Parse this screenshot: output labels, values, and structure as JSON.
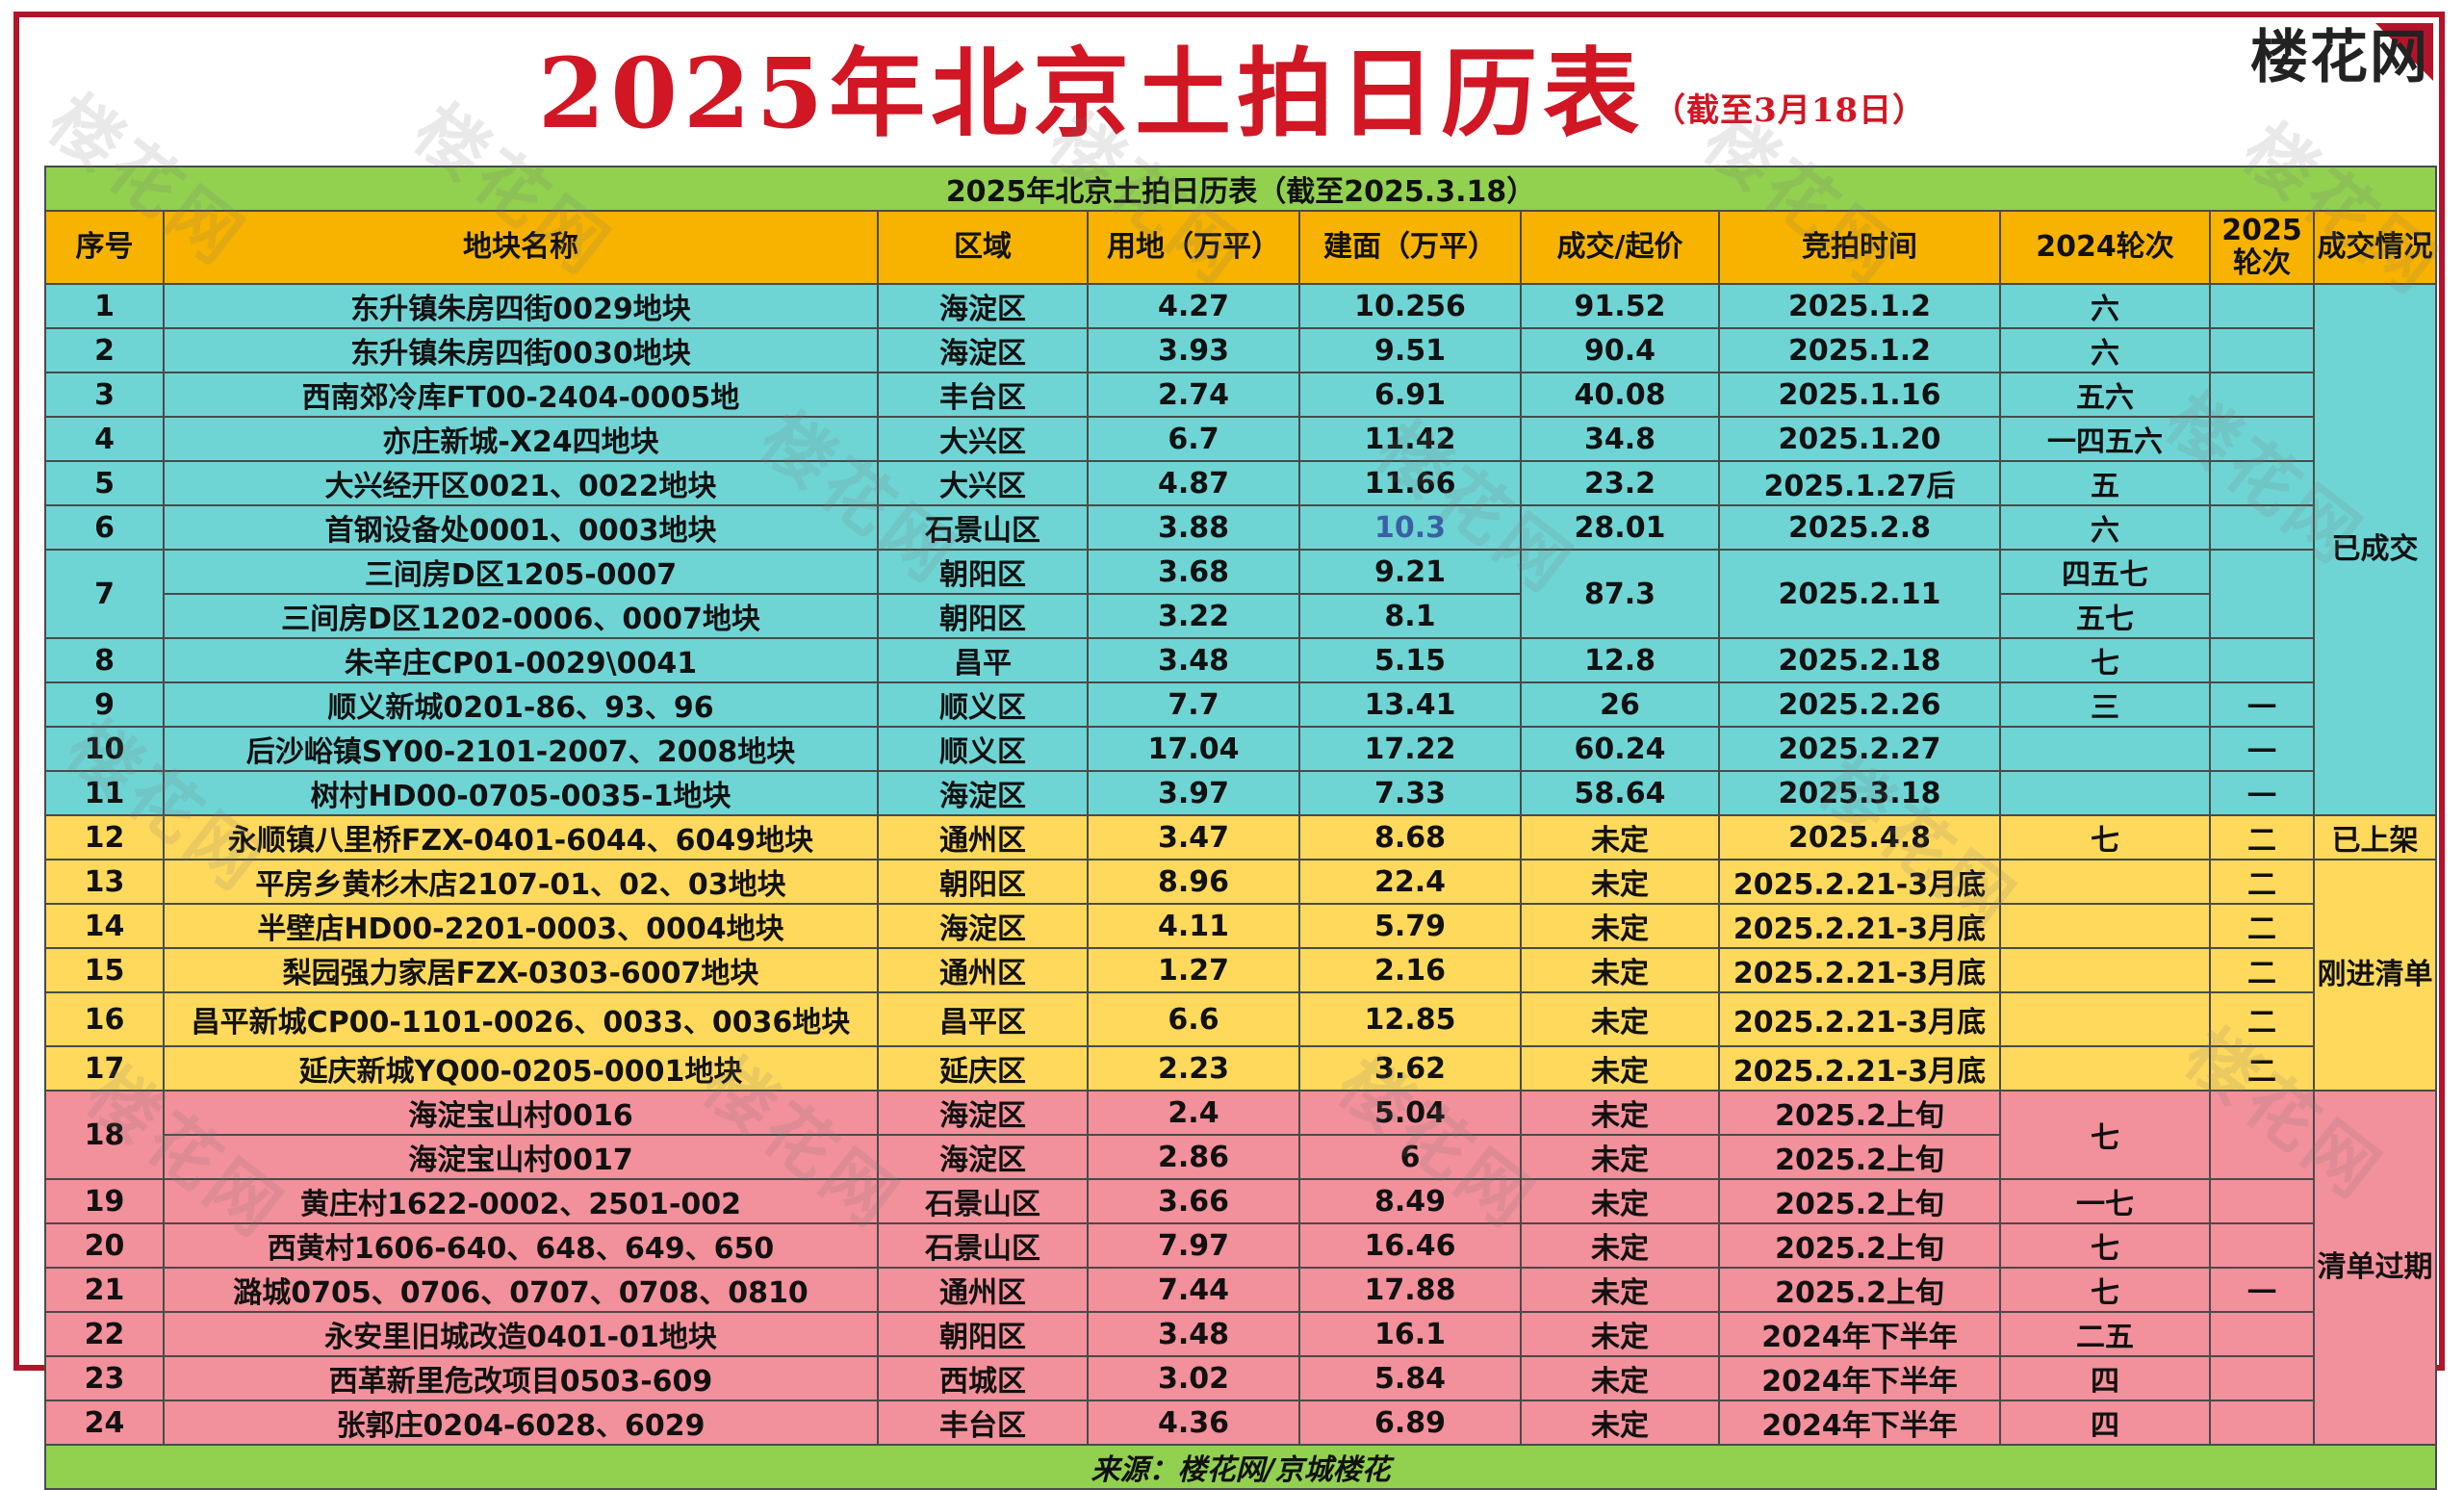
{
  "page": {
    "title": "2025年北京土拍日历表",
    "subtitle": "（截至3月18日）",
    "logo_text": "楼花网",
    "watermark_text": "楼花网",
    "accent_color": "#b3142b"
  },
  "table": {
    "caption": "2025年北京土拍日历表（截至2025.3.18）",
    "headers": {
      "index": "序号",
      "name": "地块名称",
      "district": "区域",
      "land_area": "用地（万平）",
      "floor_area": "建面（万平）",
      "price": "成交/起价",
      "auction_time": "竞拍时间",
      "round_2024": "2024轮次",
      "round_2025": "2025轮次",
      "status": "成交情况"
    },
    "status_groups": {
      "sold": "已成交",
      "listed": "已上架",
      "new": "刚进清单",
      "expired": "清单过期"
    },
    "rows": [
      {
        "index": "1",
        "name": "东升镇朱房四街0029地块",
        "district": "海淀区",
        "land": "4.27",
        "floor": "10.256",
        "price": "91.52",
        "time": "2025.1.2",
        "r2024": "六",
        "r2025": ""
      },
      {
        "index": "2",
        "name": "东升镇朱房四街0030地块",
        "district": "海淀区",
        "land": "3.93",
        "floor": "9.51",
        "price": "90.4",
        "time": "2025.1.2",
        "r2024": "六",
        "r2025": ""
      },
      {
        "index": "3",
        "name": "西南郊冷库FT00-2404-0005地",
        "district": "丰台区",
        "land": "2.74",
        "floor": "6.91",
        "price": "40.08",
        "time": "2025.1.16",
        "r2024": "五六",
        "r2025": ""
      },
      {
        "index": "4",
        "name": "亦庄新城-X24四地块",
        "district": "大兴区",
        "land": "6.7",
        "floor": "11.42",
        "price": "34.8",
        "time": "2025.1.20",
        "r2024": "一四五六",
        "r2025": ""
      },
      {
        "index": "5",
        "name": "大兴经开区0021、0022地块",
        "district": "大兴区",
        "land": "4.87",
        "floor": "11.66",
        "price": "23.2",
        "time": "2025.1.27后",
        "r2024": "五",
        "r2025": ""
      },
      {
        "index": "6",
        "name": "首钢设备处0001、0003地块",
        "district": "石景山区",
        "land": "3.88",
        "floor": "10.3",
        "price": "28.01",
        "time": "2025.2.8",
        "r2024": "六",
        "r2025": ""
      },
      {
        "index": "7",
        "sub": [
          {
            "name": "三间房D区1205-0007",
            "district": "朝阳区",
            "land": "3.68",
            "floor": "9.21",
            "r2024": "四五七"
          },
          {
            "name": "三间房D区1202-0006、0007地块",
            "district": "朝阳区",
            "land": "3.22",
            "floor": "8.1",
            "r2024": "五七"
          }
        ],
        "price": "87.3",
        "time": "2025.2.11",
        "r2025": ""
      },
      {
        "index": "8",
        "name": "朱辛庄CP01-0029\\0041",
        "district": "昌平",
        "land": "3.48",
        "floor": "5.15",
        "price": "12.8",
        "time": "2025.2.18",
        "r2024": "七",
        "r2025": ""
      },
      {
        "index": "9",
        "name": "顺义新城0201-86、93、96",
        "district": "顺义区",
        "land": "7.7",
        "floor": "13.41",
        "price": "26",
        "time": "2025.2.26",
        "r2024": "三",
        "r2025": "一"
      },
      {
        "index": "10",
        "name": "后沙峪镇SY00-2101-2007、2008地块",
        "district": "顺义区",
        "land": "17.04",
        "floor": "17.22",
        "price": "60.24",
        "time": "2025.2.27",
        "r2024": "",
        "r2025": "一"
      },
      {
        "index": "11",
        "name": "树村HD00-0705-0035-1地块",
        "district": "海淀区",
        "land": "3.97",
        "floor": "7.33",
        "price": "58.64",
        "time": "2025.3.18",
        "r2024": "",
        "r2025": "一"
      },
      {
        "index": "12",
        "name": "永顺镇八里桥FZX-0401-6044、6049地块",
        "district": "通州区",
        "land": "3.47",
        "floor": "8.68",
        "price": "未定",
        "time": "2025.4.8",
        "r2024": "七",
        "r2025": "二"
      },
      {
        "index": "13",
        "name": "平房乡黄杉木店2107-01、02、03地块",
        "district": "朝阳区",
        "land": "8.96",
        "floor": "22.4",
        "price": "未定",
        "time": "2025.2.21-3月底",
        "r2024": "",
        "r2025": "二"
      },
      {
        "index": "14",
        "name": "半壁店HD00-2201-0003、0004地块",
        "district": "海淀区",
        "land": "4.11",
        "floor": "5.79",
        "price": "未定",
        "time": "2025.2.21-3月底",
        "r2024": "",
        "r2025": "二"
      },
      {
        "index": "15",
        "name": "梨园强力家居FZX-0303-6007地块",
        "district": "通州区",
        "land": "1.27",
        "floor": "2.16",
        "price": "未定",
        "time": "2025.2.21-3月底",
        "r2024": "",
        "r2025": "二"
      },
      {
        "index": "16",
        "name": "昌平新城CP00-1101-0026、0033、0036地块",
        "district": "昌平区",
        "land": "6.6",
        "floor": "12.85",
        "price": "未定",
        "time": "2025.2.21-3月底",
        "r2024": "",
        "r2025": "二"
      },
      {
        "index": "17",
        "name": "延庆新城YQ00-0205-0001地块",
        "district": "延庆区",
        "land": "2.23",
        "floor": "3.62",
        "price": "未定",
        "time": "2025.2.21-3月底",
        "r2024": "",
        "r2025": "二"
      },
      {
        "index": "18",
        "sub": [
          {
            "name": "海淀宝山村0016",
            "district": "海淀区",
            "land": "2.4",
            "floor": "5.04",
            "price": "未定",
            "time": "2025.2上旬"
          },
          {
            "name": "海淀宝山村0017",
            "district": "海淀区",
            "land": "2.86",
            "floor": "6",
            "price": "未定",
            "time": "2025.2上旬"
          }
        ],
        "r2024": "七",
        "r2025": ""
      },
      {
        "index": "19",
        "name": "黄庄村1622-0002、2501-002",
        "district": "石景山区",
        "land": "3.66",
        "floor": "8.49",
        "price": "未定",
        "time": "2025.2上旬",
        "r2024": "一七",
        "r2025": ""
      },
      {
        "index": "20",
        "name": "西黄村1606-640、648、649、650",
        "district": "石景山区",
        "land": "7.97",
        "floor": "16.46",
        "price": "未定",
        "time": "2025.2上旬",
        "r2024": "七",
        "r2025": ""
      },
      {
        "index": "21",
        "name": "潞城0705、0706、0707、0708、0810",
        "district": "通州区",
        "land": "7.44",
        "floor": "17.88",
        "price": "未定",
        "time": "2025.2上旬",
        "r2024": "七",
        "r2025": "一"
      },
      {
        "index": "22",
        "name": "永安里旧城改造0401-01地块",
        "district": "朝阳区",
        "land": "3.48",
        "floor": "16.1",
        "price": "未定",
        "time": "2024年下半年",
        "r2024": "二五",
        "r2025": ""
      },
      {
        "index": "23",
        "name": "西革新里危改项目0503-609",
        "district": "西城区",
        "land": "3.02",
        "floor": "5.84",
        "price": "未定",
        "time": "2024年下半年",
        "r2024": "四",
        "r2025": ""
      },
      {
        "index": "24",
        "name": "张郭庄0204-6028、6029",
        "district": "丰台区",
        "land": "4.36",
        "floor": "6.89",
        "price": "未定",
        "time": "2024年下半年",
        "r2024": "四",
        "r2025": ""
      }
    ],
    "row_colors": {
      "sold": "#6fd4d4",
      "listed": "#ffd95c",
      "new": "#ffd95c",
      "expired": "#f2909b",
      "header": "#f7b300",
      "band": "#92d050",
      "highlight_text": "#ff0000"
    },
    "source": "来源：楼花网/京城楼花"
  }
}
